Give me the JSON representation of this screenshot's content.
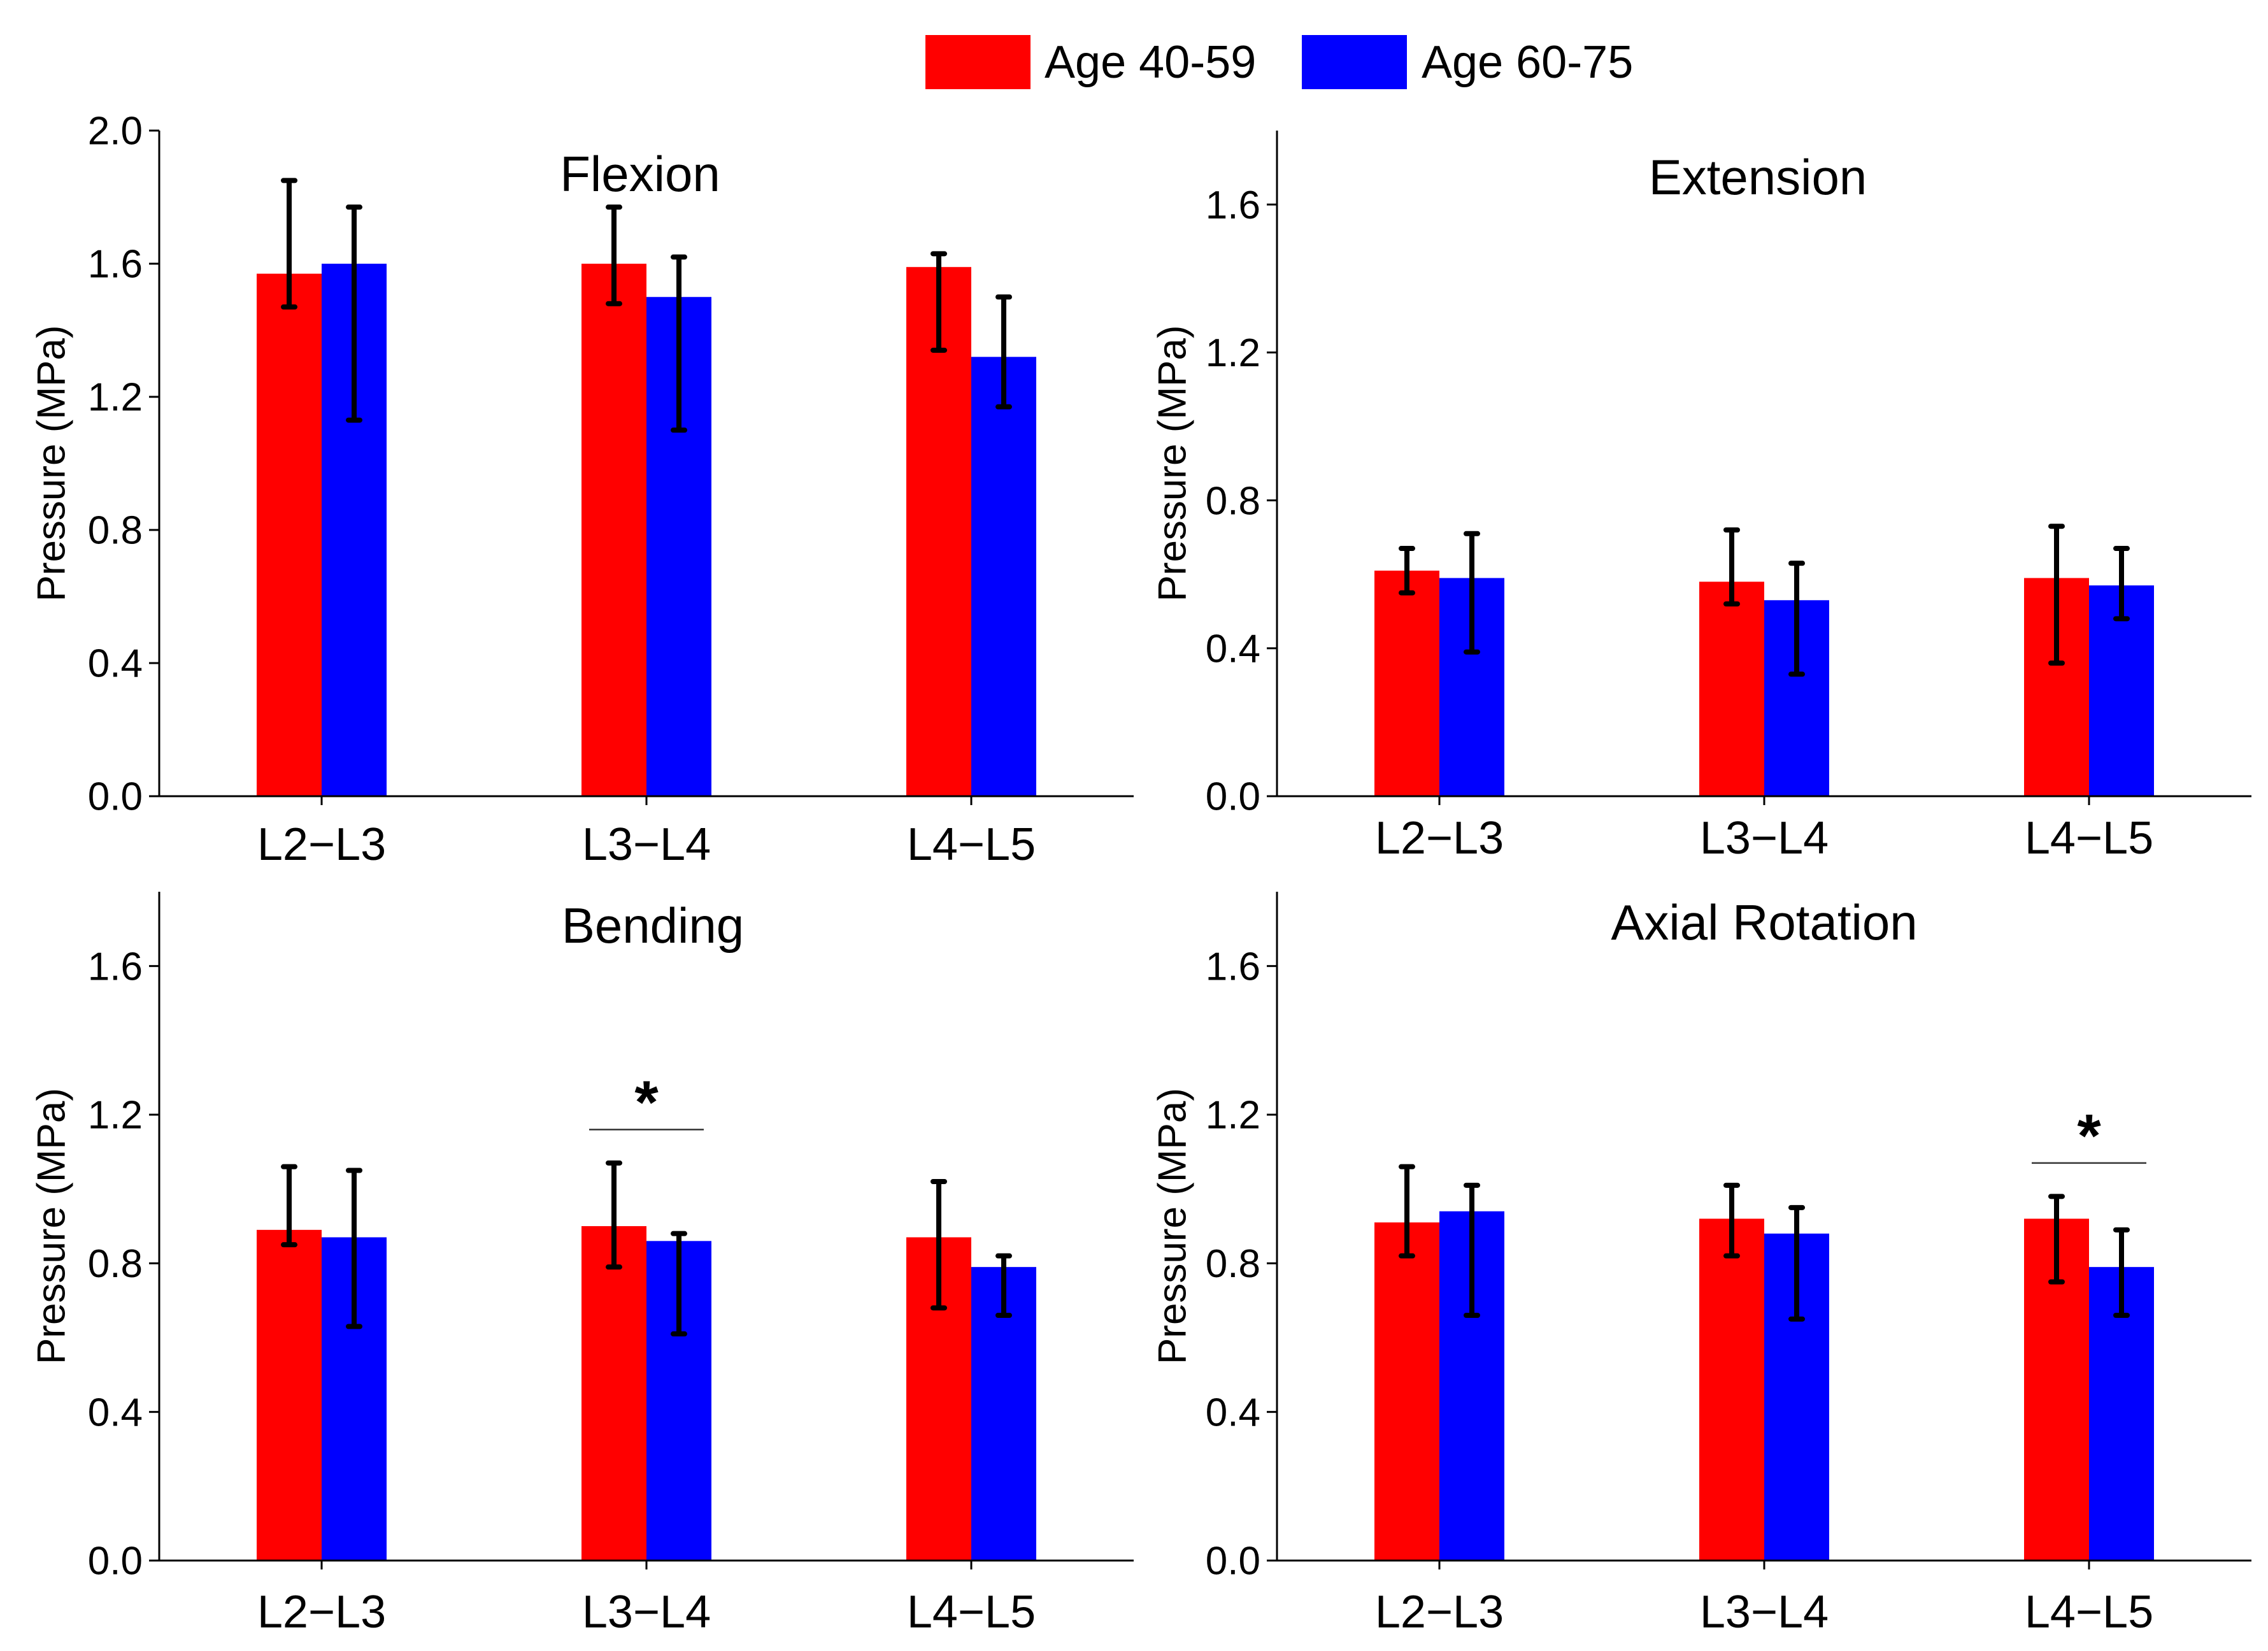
{
  "legend": [
    {
      "label": "Age 40-59",
      "color": "#ff0000"
    },
    {
      "label": "Age 60-75",
      "color": "#0000ff"
    }
  ],
  "chart_data": [
    {
      "type": "bar",
      "title": "Flexion",
      "ylabel": "Pressure (MPa)",
      "categories": [
        "L2−L3",
        "L3−L4",
        "L4−L5"
      ],
      "ylim": [
        0,
        2.0
      ],
      "yticks": [
        "0.0",
        "0.4",
        "0.8",
        "1.2",
        "1.6",
        "2.0"
      ],
      "series": [
        {
          "name": "Age 40-59",
          "color": "#ff0000",
          "values": [
            1.57,
            1.6,
            1.59
          ],
          "err_low": [
            1.47,
            1.48,
            1.34
          ],
          "err_high": [
            1.85,
            1.77,
            1.63
          ]
        },
        {
          "name": "Age 60-75",
          "color": "#0000ff",
          "values": [
            1.6,
            1.5,
            1.32
          ],
          "err_low": [
            1.13,
            1.1,
            1.17
          ],
          "err_high": [
            1.77,
            1.62,
            1.5
          ]
        }
      ],
      "significance": []
    },
    {
      "type": "bar",
      "title": "Extension",
      "ylabel": "Pressure (MPa)",
      "categories": [
        "L2−L3",
        "L3−L4",
        "L4−L5"
      ],
      "ylim": [
        0,
        1.8
      ],
      "yticks": [
        "0.0",
        "0.4",
        "0.8",
        "1.2",
        "1.6"
      ],
      "series": [
        {
          "name": "Age 40-59",
          "color": "#ff0000",
          "values": [
            0.61,
            0.58,
            0.59
          ],
          "err_low": [
            0.55,
            0.52,
            0.36
          ],
          "err_high": [
            0.67,
            0.72,
            0.73
          ]
        },
        {
          "name": "Age 60-75",
          "color": "#0000ff",
          "values": [
            0.59,
            0.53,
            0.57
          ],
          "err_low": [
            0.39,
            0.33,
            0.48
          ],
          "err_high": [
            0.71,
            0.63,
            0.67
          ]
        }
      ],
      "significance": []
    },
    {
      "type": "bar",
      "title": "Bending",
      "ylabel": "Pressure (MPa)",
      "categories": [
        "L2−L3",
        "L3−L4",
        "L4−L5"
      ],
      "ylim": [
        0,
        1.8
      ],
      "yticks": [
        "0.0",
        "0.4",
        "0.8",
        "1.2",
        "1.6"
      ],
      "series": [
        {
          "name": "Age 40-59",
          "color": "#ff0000",
          "values": [
            0.89,
            0.9,
            0.87
          ],
          "err_low": [
            0.85,
            0.79,
            0.68
          ],
          "err_high": [
            1.06,
            1.07,
            1.02
          ]
        },
        {
          "name": "Age 60-75",
          "color": "#0000ff",
          "values": [
            0.87,
            0.86,
            0.79
          ],
          "err_low": [
            0.63,
            0.61,
            0.66
          ],
          "err_high": [
            1.05,
            0.88,
            0.82
          ]
        }
      ],
      "significance": [
        {
          "category": 1,
          "label": "*",
          "y": 1.16
        }
      ]
    },
    {
      "type": "bar",
      "title": "Axial Rotation",
      "ylabel": "Pressure (MPa)",
      "categories": [
        "L2−L3",
        "L3−L4",
        "L4−L5"
      ],
      "ylim": [
        0,
        1.8
      ],
      "yticks": [
        "0.0",
        "0.4",
        "0.8",
        "1.2",
        "1.6"
      ],
      "series": [
        {
          "name": "Age 40-59",
          "color": "#ff0000",
          "values": [
            0.91,
            0.92,
            0.92
          ],
          "err_low": [
            0.82,
            0.82,
            0.75
          ],
          "err_high": [
            1.06,
            1.01,
            0.98
          ]
        },
        {
          "name": "Age 60-75",
          "color": "#0000ff",
          "values": [
            0.94,
            0.88,
            0.79
          ],
          "err_low": [
            0.66,
            0.65,
            0.66
          ],
          "err_high": [
            1.01,
            0.95,
            0.89
          ]
        }
      ],
      "significance": [
        {
          "category": 2,
          "label": "*",
          "y": 1.07
        }
      ]
    }
  ]
}
